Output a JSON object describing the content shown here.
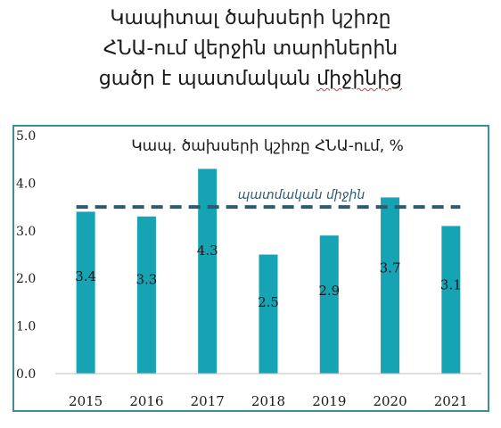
{
  "heading": {
    "line1": "Կապիտալ ծախսերի կշիռը",
    "line2": "ՀՆԱ-ում վերջին տարիներին",
    "line3a": "ցածր է պատմական ",
    "line3b": "միջինից"
  },
  "chart_data": {
    "type": "bar",
    "title": "Կապ. ծախսերի կշիռը ՀՆԱ-ում, %",
    "categories": [
      "2015",
      "2016",
      "2017",
      "2018",
      "2019",
      "2020",
      "2021"
    ],
    "values": [
      3.4,
      3.3,
      4.3,
      2.5,
      2.9,
      3.7,
      3.1
    ],
    "data_labels": [
      "3.4",
      "3.3",
      "4.3",
      "2.5",
      "2.9",
      "3.7",
      "3.1"
    ],
    "ylim": [
      0,
      5
    ],
    "yticks": [
      "0.0",
      "1.0",
      "2.0",
      "3.0",
      "4.0",
      "5.0"
    ],
    "reference_line": {
      "label": "պատմական միջին",
      "value": 3.5,
      "style": "dashed"
    },
    "colors": {
      "bar": "#16a3b3",
      "reference_line": "#2c5a6e",
      "frame": "#3f8d99"
    },
    "grid": false,
    "legend": "none"
  }
}
